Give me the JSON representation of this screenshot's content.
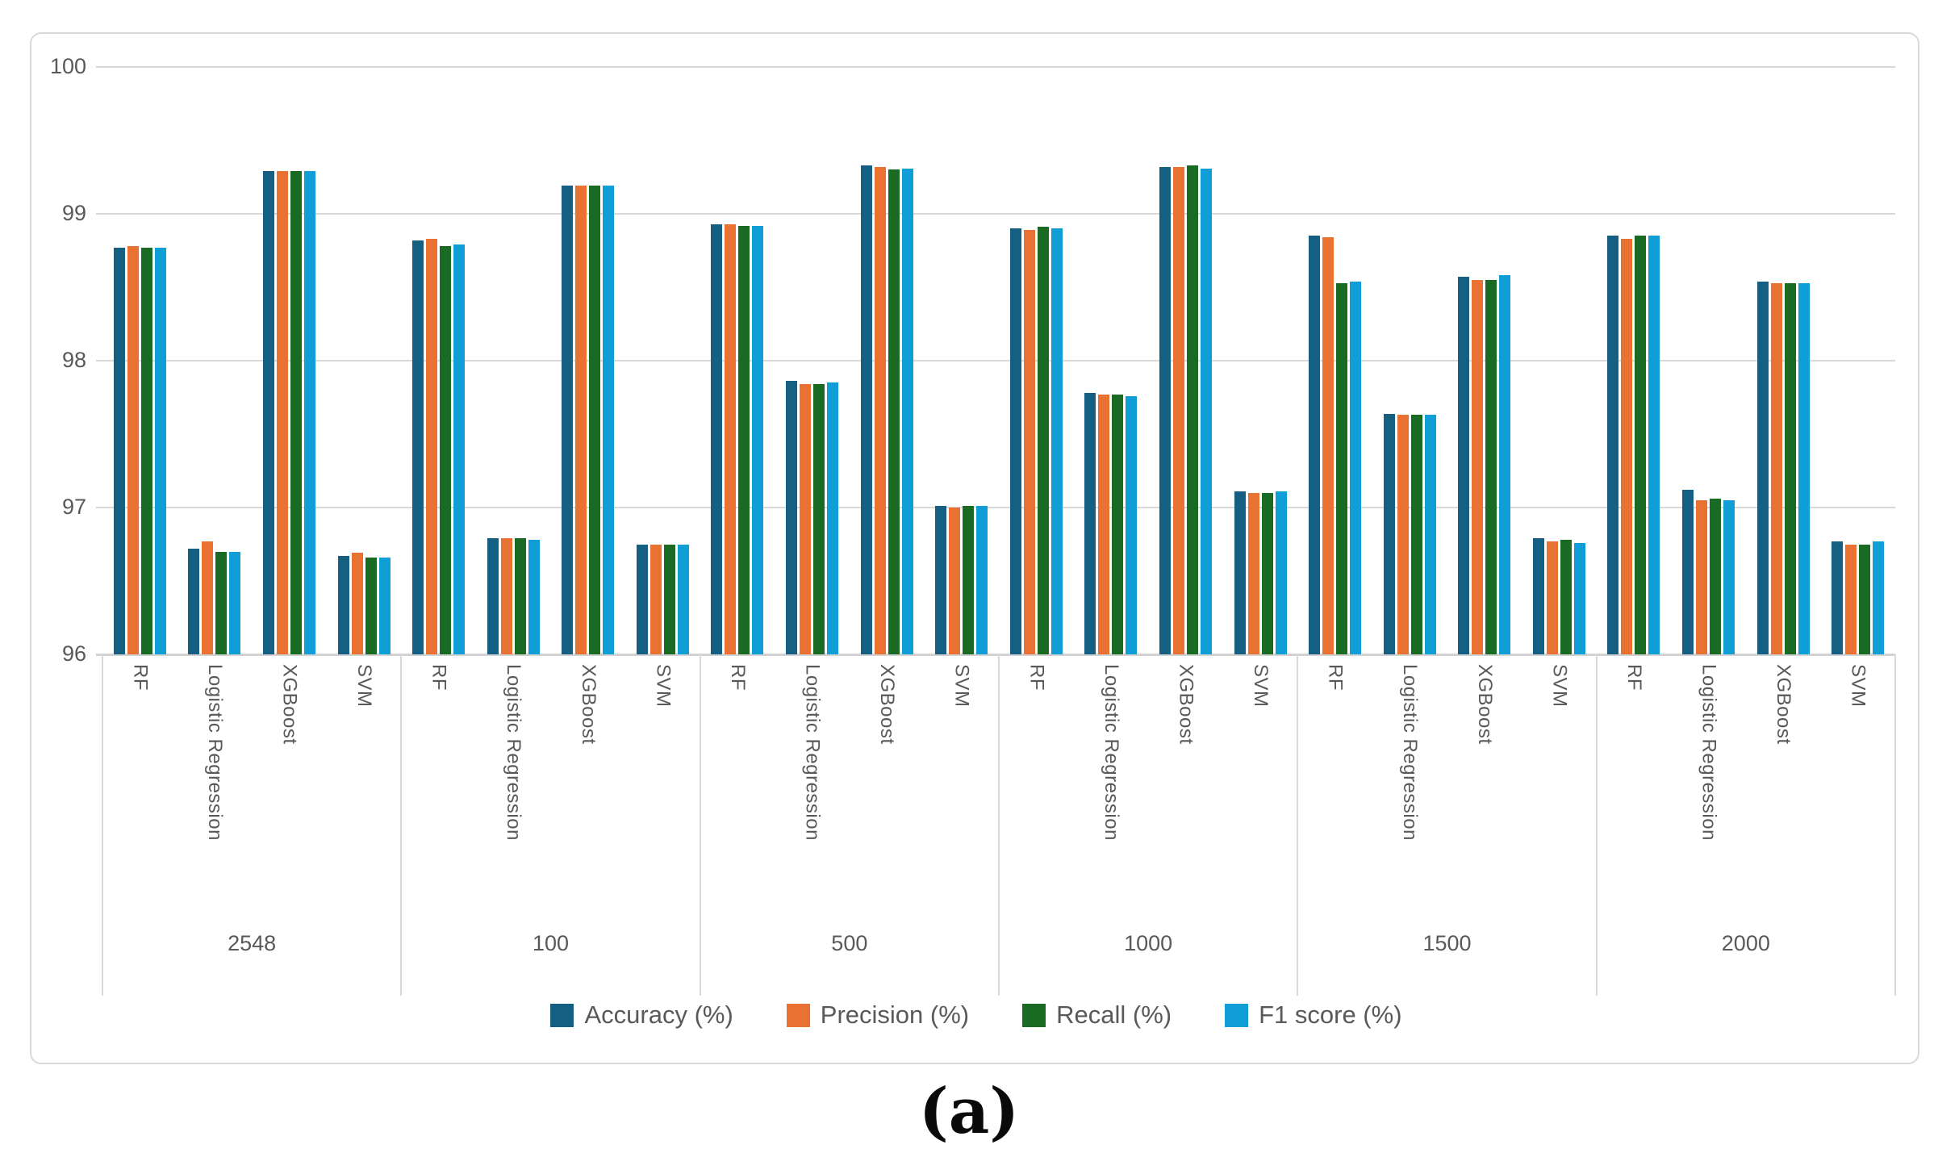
{
  "caption": "(a)",
  "colors": {
    "accuracy": "#156082",
    "precision": "#E97132",
    "recall": "#196B24",
    "f1": "#0F9ED5",
    "gridline": "#d9d9d9",
    "axis_text": "#595959"
  },
  "legend": {
    "items": [
      {
        "label": "Accuracy (%)",
        "color": "#156082"
      },
      {
        "label": "Precision (%)",
        "color": "#E97132"
      },
      {
        "label": "Recall (%)",
        "color": "#196B24"
      },
      {
        "label": "F1 score (%)",
        "color": "#0F9ED5"
      }
    ]
  },
  "chart_data": {
    "type": "bar",
    "title": "",
    "xlabel": "",
    "ylabel": "",
    "ylim": [
      96,
      100
    ],
    "yticks": [
      100,
      99,
      98,
      97,
      96
    ],
    "grid": true,
    "legend_position": "bottom",
    "groups": [
      "2548",
      "100",
      "500",
      "1000",
      "1500",
      "2000"
    ],
    "models": [
      "RF",
      "Logistic Regression",
      "XGBoost",
      "SVM"
    ],
    "series": [
      {
        "name": "Accuracy (%)",
        "color": "#156082",
        "values": [
          [
            98.77,
            96.72,
            99.29,
            96.67
          ],
          [
            98.82,
            96.79,
            99.19,
            96.75
          ],
          [
            98.93,
            97.86,
            99.33,
            97.01
          ],
          [
            98.9,
            97.78,
            99.32,
            97.11
          ],
          [
            98.85,
            97.64,
            98.57,
            96.79
          ],
          [
            98.85,
            97.12,
            98.54,
            96.77
          ]
        ]
      },
      {
        "name": "Precision (%)",
        "color": "#E97132",
        "values": [
          [
            98.78,
            96.77,
            99.29,
            96.69
          ],
          [
            98.83,
            96.79,
            99.19,
            96.75
          ],
          [
            98.93,
            97.84,
            99.32,
            97.0
          ],
          [
            98.89,
            97.77,
            99.32,
            97.1
          ],
          [
            98.84,
            97.63,
            98.55,
            96.77
          ],
          [
            98.83,
            97.05,
            98.53,
            96.75
          ]
        ]
      },
      {
        "name": "Recall (%)",
        "color": "#196B24",
        "values": [
          [
            98.77,
            96.7,
            99.29,
            96.66
          ],
          [
            98.78,
            96.79,
            99.19,
            96.75
          ],
          [
            98.92,
            97.84,
            99.3,
            97.01
          ],
          [
            98.91,
            97.77,
            99.33,
            97.1
          ],
          [
            98.53,
            97.63,
            98.55,
            96.78
          ],
          [
            98.85,
            97.06,
            98.53,
            96.75
          ]
        ]
      },
      {
        "name": "F1 score (%)",
        "color": "#0F9ED5",
        "values": [
          [
            98.77,
            96.7,
            99.29,
            96.66
          ],
          [
            98.79,
            96.78,
            99.19,
            96.75
          ],
          [
            98.92,
            97.85,
            99.31,
            97.01
          ],
          [
            98.9,
            97.76,
            99.31,
            97.11
          ],
          [
            98.54,
            97.63,
            98.58,
            96.76
          ],
          [
            98.85,
            97.05,
            98.53,
            96.77
          ]
        ]
      }
    ]
  }
}
